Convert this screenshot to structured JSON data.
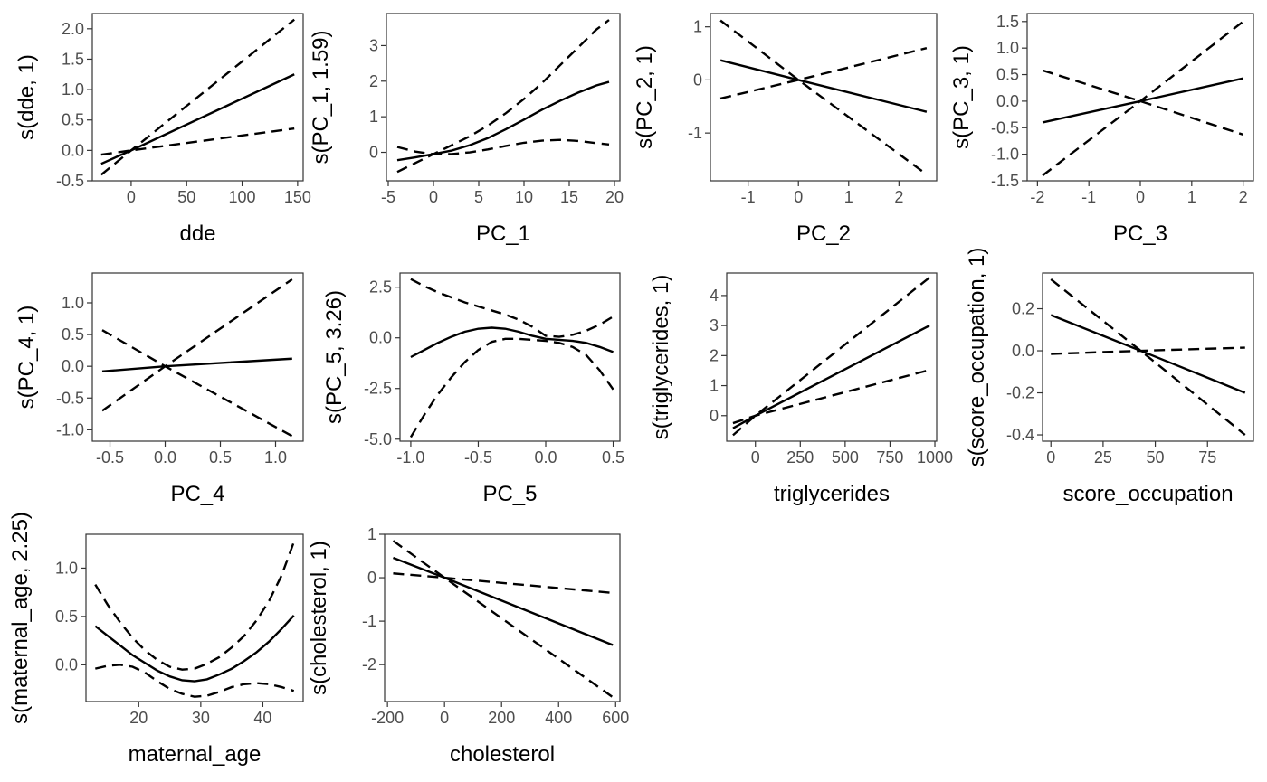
{
  "chart_data": [
    {
      "type": "line",
      "xlabel": "dde",
      "ylabel": "s(dde, 1)",
      "xlim": [
        -35,
        155
      ],
      "ylim": [
        -0.5,
        2.25
      ],
      "xticks": [
        0,
        50,
        100,
        150
      ],
      "yticks": [
        -0.5,
        0.0,
        0.5,
        1.0,
        1.5,
        2.0
      ],
      "xtick_labels": [
        "0",
        "50",
        "100",
        "150"
      ],
      "ytick_labels": [
        "-0.5",
        "0.0",
        "0.5",
        "1.0",
        "1.5",
        "2.0"
      ],
      "series": [
        {
          "style": "solid",
          "x": [
            -27,
            0,
            147
          ],
          "y": [
            -0.22,
            0.0,
            1.25
          ]
        },
        {
          "style": "dashed",
          "x": [
            -27,
            0,
            147
          ],
          "y": [
            -0.4,
            0.0,
            2.15
          ]
        },
        {
          "style": "dashed",
          "x": [
            -27,
            0,
            147
          ],
          "y": [
            -0.07,
            0.0,
            0.36
          ]
        }
      ]
    },
    {
      "type": "line",
      "xlabel": "PC_1",
      "ylabel": "s(PC_1, 1.59)",
      "xlim": [
        -5.2,
        20.6
      ],
      "ylim": [
        -0.8,
        3.9
      ],
      "xticks": [
        -5,
        0,
        5,
        10,
        15,
        20
      ],
      "yticks": [
        0,
        1,
        2,
        3
      ],
      "xtick_labels": [
        "-5",
        "0",
        "5",
        "10",
        "15",
        "20"
      ],
      "ytick_labels": [
        "0",
        "1",
        "2",
        "3"
      ],
      "series": [
        {
          "style": "solid",
          "x": [
            -4,
            -2,
            0,
            2,
            4,
            6,
            8,
            10,
            12,
            14,
            16,
            18,
            19.4
          ],
          "y": [
            -0.22,
            -0.14,
            -0.05,
            0.05,
            0.2,
            0.4,
            0.65,
            0.92,
            1.2,
            1.45,
            1.68,
            1.88,
            1.98
          ]
        },
        {
          "style": "dashed",
          "x": [
            -4,
            -2,
            0,
            2,
            4,
            6,
            8,
            10,
            12,
            14,
            16,
            18,
            19.4
          ],
          "y": [
            -0.55,
            -0.3,
            -0.05,
            0.2,
            0.45,
            0.75,
            1.1,
            1.5,
            1.95,
            2.45,
            2.95,
            3.45,
            3.72
          ]
        },
        {
          "style": "dashed",
          "x": [
            -4,
            -2,
            0,
            2,
            4,
            6,
            8,
            10,
            12,
            14,
            16,
            18,
            19.4
          ],
          "y": [
            0.15,
            0.02,
            -0.05,
            -0.05,
            0.0,
            0.08,
            0.18,
            0.27,
            0.33,
            0.35,
            0.32,
            0.26,
            0.22
          ]
        }
      ]
    },
    {
      "type": "line",
      "xlabel": "PC_2",
      "ylabel": "s(PC_2, 1)",
      "xlim": [
        -1.75,
        2.75
      ],
      "ylim": [
        -1.9,
        1.25
      ],
      "xticks": [
        -1,
        0,
        1,
        2
      ],
      "yticks": [
        -1,
        0,
        1
      ],
      "xtick_labels": [
        "-1",
        "0",
        "1",
        "2"
      ],
      "ytick_labels": [
        "-1",
        "0",
        "1"
      ],
      "series": [
        {
          "style": "solid",
          "x": [
            -1.55,
            0,
            2.55
          ],
          "y": [
            0.37,
            0.0,
            -0.6
          ]
        },
        {
          "style": "dashed",
          "x": [
            -1.55,
            0,
            2.55
          ],
          "y": [
            1.12,
            0.0,
            -1.78
          ]
        },
        {
          "style": "dashed",
          "x": [
            -1.55,
            0,
            2.55
          ],
          "y": [
            -0.35,
            0.0,
            0.6
          ]
        }
      ]
    },
    {
      "type": "line",
      "xlabel": "PC_3",
      "ylabel": "s(PC_3, 1)",
      "xlim": [
        -2.2,
        2.2
      ],
      "ylim": [
        -1.5,
        1.65
      ],
      "xticks": [
        -2,
        -1,
        0,
        1,
        2
      ],
      "yticks": [
        -1.5,
        -1.0,
        -0.5,
        0.0,
        0.5,
        1.0,
        1.5
      ],
      "xtick_labels": [
        "-2",
        "-1",
        "0",
        "1",
        "2"
      ],
      "ytick_labels": [
        "-1.5",
        "-1.0",
        "-0.5",
        "0.0",
        "0.5",
        "1.0",
        "1.5"
      ],
      "series": [
        {
          "style": "solid",
          "x": [
            -1.9,
            0,
            2.0
          ],
          "y": [
            -0.4,
            0.0,
            0.43
          ]
        },
        {
          "style": "dashed",
          "x": [
            -1.9,
            0,
            2.0
          ],
          "y": [
            -1.4,
            0.0,
            1.5
          ]
        },
        {
          "style": "dashed",
          "x": [
            -1.9,
            0,
            2.0
          ],
          "y": [
            0.58,
            0.0,
            -0.63
          ]
        }
      ]
    },
    {
      "type": "line",
      "xlabel": "PC_4",
      "ylabel": "s(PC_4, 1)",
      "xlim": [
        -0.66,
        1.25
      ],
      "ylim": [
        -1.18,
        1.47
      ],
      "xticks": [
        -0.5,
        0.0,
        0.5,
        1.0
      ],
      "yticks": [
        -1.0,
        -0.5,
        0.0,
        0.5,
        1.0
      ],
      "xtick_labels": [
        "-0.5",
        "0.0",
        "0.5",
        "1.0"
      ],
      "ytick_labels": [
        "-1.0",
        "-0.5",
        "0.0",
        "0.5",
        "1.0"
      ],
      "series": [
        {
          "style": "solid",
          "x": [
            -0.57,
            0,
            1.15
          ],
          "y": [
            -0.08,
            0.0,
            0.12
          ]
        },
        {
          "style": "dashed",
          "x": [
            -0.57,
            0,
            1.15
          ],
          "y": [
            -0.7,
            0.0,
            1.37
          ]
        },
        {
          "style": "dashed",
          "x": [
            -0.57,
            0,
            1.15
          ],
          "y": [
            0.57,
            0.0,
            -1.1
          ]
        }
      ]
    },
    {
      "type": "line",
      "xlabel": "PC_5",
      "ylabel": "s(PC_5, 3.26)",
      "xlim": [
        -1.08,
        0.55
      ],
      "ylim": [
        -5.1,
        3.2
      ],
      "xticks": [
        -1.0,
        -0.5,
        0.0,
        0.5
      ],
      "yticks": [
        -5.0,
        -2.5,
        0.0,
        2.5
      ],
      "xtick_labels": [
        "-1.0",
        "-0.5",
        "0.0",
        "0.5"
      ],
      "ytick_labels": [
        "-5.0",
        "-2.5",
        "0.0",
        "2.5"
      ],
      "series": [
        {
          "style": "solid",
          "x": [
            -1.0,
            -0.9,
            -0.8,
            -0.7,
            -0.6,
            -0.5,
            -0.4,
            -0.3,
            -0.2,
            -0.1,
            0.0,
            0.1,
            0.2,
            0.3,
            0.4,
            0.5
          ],
          "y": [
            -0.95,
            -0.6,
            -0.25,
            0.05,
            0.3,
            0.45,
            0.5,
            0.45,
            0.3,
            0.1,
            -0.05,
            -0.1,
            -0.15,
            -0.25,
            -0.45,
            -0.7
          ]
        },
        {
          "style": "dashed",
          "x": [
            -1.0,
            -0.9,
            -0.8,
            -0.7,
            -0.6,
            -0.5,
            -0.4,
            -0.3,
            -0.2,
            -0.1,
            0.0,
            0.1,
            0.2,
            0.3,
            0.4,
            0.5
          ],
          "y": [
            2.9,
            2.55,
            2.25,
            2.0,
            1.75,
            1.55,
            1.35,
            1.15,
            0.9,
            0.55,
            0.1,
            0.05,
            0.15,
            0.35,
            0.65,
            1.05
          ]
        },
        {
          "style": "dashed",
          "x": [
            -1.0,
            -0.9,
            -0.8,
            -0.7,
            -0.6,
            -0.5,
            -0.4,
            -0.3,
            -0.2,
            -0.1,
            0.0,
            0.1,
            0.2,
            0.3,
            0.4,
            0.5
          ],
          "y": [
            -4.9,
            -3.8,
            -2.8,
            -1.95,
            -1.2,
            -0.6,
            -0.2,
            -0.05,
            -0.05,
            -0.1,
            -0.15,
            -0.25,
            -0.45,
            -0.85,
            -1.6,
            -2.55
          ]
        }
      ]
    },
    {
      "type": "line",
      "xlabel": "triglycerides",
      "ylabel": "s(triglycerides, 1)",
      "xlim": [
        -160,
        1010
      ],
      "ylim": [
        -0.85,
        4.75
      ],
      "xticks": [
        0,
        250,
        500,
        750,
        1000
      ],
      "yticks": [
        0,
        1,
        2,
        3,
        4
      ],
      "xtick_labels": [
        "0",
        "250",
        "500",
        "750",
        "1000"
      ],
      "ytick_labels": [
        "0",
        "1",
        "2",
        "3",
        "4"
      ],
      "series": [
        {
          "style": "solid",
          "x": [
            -125,
            0,
            970
          ],
          "y": [
            -0.42,
            0.0,
            3.0
          ]
        },
        {
          "style": "dashed",
          "x": [
            -125,
            0,
            970
          ],
          "y": [
            -0.65,
            0.0,
            4.6
          ]
        },
        {
          "style": "dashed",
          "x": [
            -125,
            0,
            970
          ],
          "y": [
            -0.25,
            0.0,
            1.52
          ]
        }
      ]
    },
    {
      "type": "line",
      "xlabel": "score_occupation",
      "ylabel": "s(score_occupation, 1)",
      "xlim": [
        -4,
        97
      ],
      "ylim": [
        -0.43,
        0.37
      ],
      "xticks": [
        0,
        25,
        50,
        75
      ],
      "yticks": [
        -0.4,
        -0.2,
        0.0,
        0.2
      ],
      "xtick_labels": [
        "0",
        "25",
        "50",
        "75"
      ],
      "ytick_labels": [
        "-0.4",
        "-0.2",
        "0.0",
        "0.2"
      ],
      "series": [
        {
          "style": "solid",
          "x": [
            0,
            43,
            93
          ],
          "y": [
            0.17,
            0.0,
            -0.2
          ]
        },
        {
          "style": "dashed",
          "x": [
            0,
            43,
            93
          ],
          "y": [
            0.34,
            0.0,
            -0.4
          ]
        },
        {
          "style": "dashed",
          "x": [
            0,
            43,
            93
          ],
          "y": [
            -0.015,
            0.0,
            0.015
          ]
        }
      ]
    },
    {
      "type": "line",
      "xlabel": "maternal_age",
      "ylabel": "s(maternal_age, 2.25)",
      "xlim": [
        11.5,
        46.5
      ],
      "ylim": [
        -0.38,
        1.35
      ],
      "xticks": [
        20,
        30,
        40
      ],
      "yticks": [
        0.0,
        0.5,
        1.0
      ],
      "xtick_labels": [
        "20",
        "30",
        "40"
      ],
      "ytick_labels": [
        "0.0",
        "0.5",
        "1.0"
      ],
      "series": [
        {
          "style": "solid",
          "x": [
            13,
            15,
            17,
            19,
            21,
            23,
            25,
            27,
            29,
            31,
            33,
            35,
            37,
            39,
            41,
            43,
            45
          ],
          "y": [
            0.4,
            0.3,
            0.2,
            0.1,
            0.02,
            -0.06,
            -0.12,
            -0.16,
            -0.17,
            -0.15,
            -0.1,
            -0.04,
            0.04,
            0.13,
            0.24,
            0.37,
            0.51
          ]
        },
        {
          "style": "dashed",
          "x": [
            13,
            15,
            17,
            19,
            21,
            23,
            25,
            27,
            29,
            31,
            33,
            35,
            37,
            39,
            41,
            43,
            45
          ],
          "y": [
            0.83,
            0.62,
            0.44,
            0.28,
            0.15,
            0.05,
            -0.02,
            -0.05,
            -0.04,
            0.01,
            0.08,
            0.18,
            0.3,
            0.46,
            0.66,
            0.92,
            1.27
          ]
        },
        {
          "style": "dashed",
          "x": [
            13,
            15,
            17,
            19,
            21,
            23,
            25,
            27,
            29,
            31,
            33,
            35,
            37,
            39,
            41,
            43,
            45
          ],
          "y": [
            -0.04,
            -0.01,
            0.0,
            -0.02,
            -0.08,
            -0.17,
            -0.25,
            -0.3,
            -0.33,
            -0.32,
            -0.28,
            -0.23,
            -0.2,
            -0.19,
            -0.2,
            -0.23,
            -0.27
          ]
        }
      ]
    },
    {
      "type": "line",
      "xlabel": "cholesterol",
      "ylabel": "s(cholesterol, 1)",
      "xlim": [
        -210,
        615
      ],
      "ylim": [
        -2.85,
        1.0
      ],
      "xticks": [
        -200,
        0,
        200,
        400,
        600
      ],
      "yticks": [
        -2,
        -1,
        0,
        1
      ],
      "xtick_labels": [
        "-200",
        "0",
        "200",
        "400",
        "600"
      ],
      "ytick_labels": [
        "-2",
        "-1",
        "0",
        "1"
      ],
      "series": [
        {
          "style": "solid",
          "x": [
            -180,
            0,
            590
          ],
          "y": [
            0.46,
            0.0,
            -1.55
          ]
        },
        {
          "style": "dashed",
          "x": [
            -180,
            0,
            590
          ],
          "y": [
            0.85,
            0.0,
            -2.75
          ]
        },
        {
          "style": "dashed",
          "x": [
            -180,
            0,
            590
          ],
          "y": [
            0.1,
            0.0,
            -0.35
          ]
        }
      ]
    }
  ]
}
